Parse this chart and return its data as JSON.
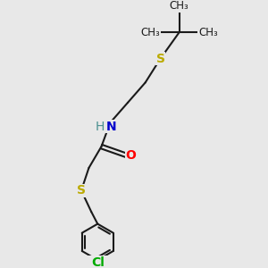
{
  "bg_color": "#e8e8e8",
  "bond_color": "#1a1a1a",
  "bond_width": 1.5,
  "colors": {
    "N": "#0000cc",
    "O": "#ff0000",
    "S": "#bbaa00",
    "Cl": "#00aa00",
    "H_label": "#4a9090",
    "C": "#1a1a1a"
  },
  "font_size": 10,
  "figsize": [
    3.0,
    3.0
  ],
  "dpi": 100,
  "xlim": [
    0,
    10
  ],
  "ylim": [
    0,
    10
  ]
}
